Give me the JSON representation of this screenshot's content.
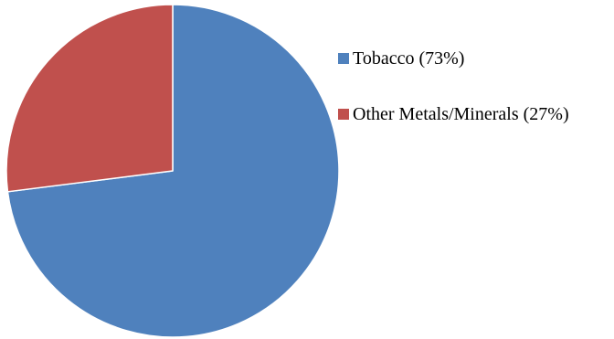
{
  "chart_data": {
    "type": "pie",
    "title": "",
    "categories": [
      "Tobacco",
      "Other Metals/Minerals"
    ],
    "values": [
      73,
      27
    ],
    "colors": [
      "#4F81BD",
      "#C0504D"
    ],
    "legend_labels": [
      "Tobacco (73%)",
      "Other Metals/Minerals (27%)"
    ],
    "legend_position": "right",
    "start_angle": "12 o'clock",
    "direction": "clockwise"
  }
}
